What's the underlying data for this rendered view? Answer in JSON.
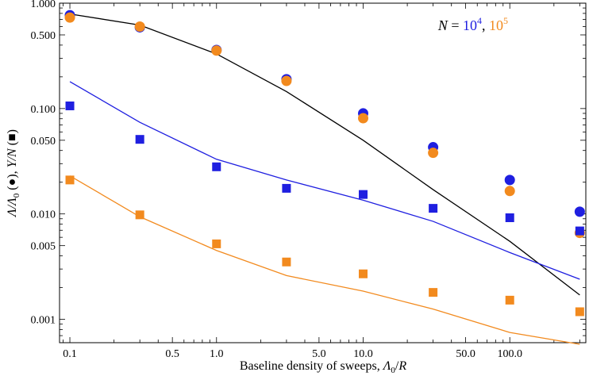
{
  "chart_data": {
    "type": "scatter",
    "x_scale": "log",
    "y_scale": "log",
    "xlim": [
      0.085,
      330
    ],
    "ylim": [
      0.0006,
      1.0
    ],
    "xlabel_parts": [
      "Baseline density of sweeps, ",
      "Λ",
      "0",
      "/",
      "R"
    ],
    "ylabel_parts": [
      "Λ/Λ",
      "0",
      " (",
      "●",
      "),  ",
      "Υ/",
      "N",
      " (",
      "■",
      ")"
    ],
    "x_ticks": [
      {
        "value": 0.1,
        "label": "0.1"
      },
      {
        "value": 0.5,
        "label": "0.5"
      },
      {
        "value": 1.0,
        "label": "1.0"
      },
      {
        "value": 5.0,
        "label": "5.0"
      },
      {
        "value": 10.0,
        "label": "10.0"
      },
      {
        "value": 50.0,
        "label": "50.0"
      },
      {
        "value": 100.0,
        "label": "100.0"
      }
    ],
    "y_ticks": [
      {
        "value": 0.001,
        "label": "0.001"
      },
      {
        "value": 0.005,
        "label": "0.005"
      },
      {
        "value": 0.01,
        "label": "0.010"
      },
      {
        "value": 0.05,
        "label": "0.050"
      },
      {
        "value": 0.1,
        "label": "0.100"
      },
      {
        "value": 0.5,
        "label": "0.500"
      },
      {
        "value": 1.0,
        "label": "1.000"
      }
    ],
    "legend": {
      "prefix": "N",
      "equals": " = ",
      "entries": [
        {
          "base": "10",
          "exp": "4",
          "color": "#1f1fe0"
        },
        {
          "base": "10",
          "exp": "5",
          "color": "#f28a1e"
        }
      ],
      "separator": ", ",
      "position": "top-right"
    },
    "x": [
      0.1,
      0.3,
      1.0,
      3.0,
      10.0,
      30.0,
      100.0,
      300.0
    ],
    "series": [
      {
        "marker": "circle",
        "color": "#1f1fe0",
        "values": [
          0.77,
          0.59,
          0.36,
          0.19,
          0.09,
          0.043,
          0.021,
          0.0105
        ]
      },
      {
        "marker": "circle",
        "color": "#f28a1e",
        "values": [
          0.73,
          0.6,
          0.355,
          0.183,
          0.081,
          0.038,
          0.0165,
          0.0066
        ]
      },
      {
        "marker": "square",
        "color": "#1f1fe0",
        "values": [
          0.106,
          0.051,
          0.028,
          0.0175,
          0.0153,
          0.0113,
          0.0092,
          0.0069
        ]
      },
      {
        "marker": "square",
        "color": "#f28a1e",
        "values": [
          0.021,
          0.0098,
          0.0052,
          0.0035,
          0.0027,
          0.0018,
          0.00152,
          0.00118
        ]
      },
      {
        "marker": "line",
        "color": "#000000",
        "values": [
          0.79,
          0.62,
          0.33,
          0.145,
          0.05,
          0.017,
          0.0055,
          0.0017
        ]
      },
      {
        "marker": "line",
        "color": "#1f1fe0",
        "values": [
          0.18,
          0.074,
          0.033,
          0.021,
          0.0135,
          0.0085,
          0.0043,
          0.0024
        ]
      },
      {
        "marker": "line",
        "color": "#f28a1e",
        "values": [
          0.023,
          0.0094,
          0.0045,
          0.0026,
          0.00185,
          0.00125,
          0.00075,
          0.00058
        ]
      }
    ]
  }
}
